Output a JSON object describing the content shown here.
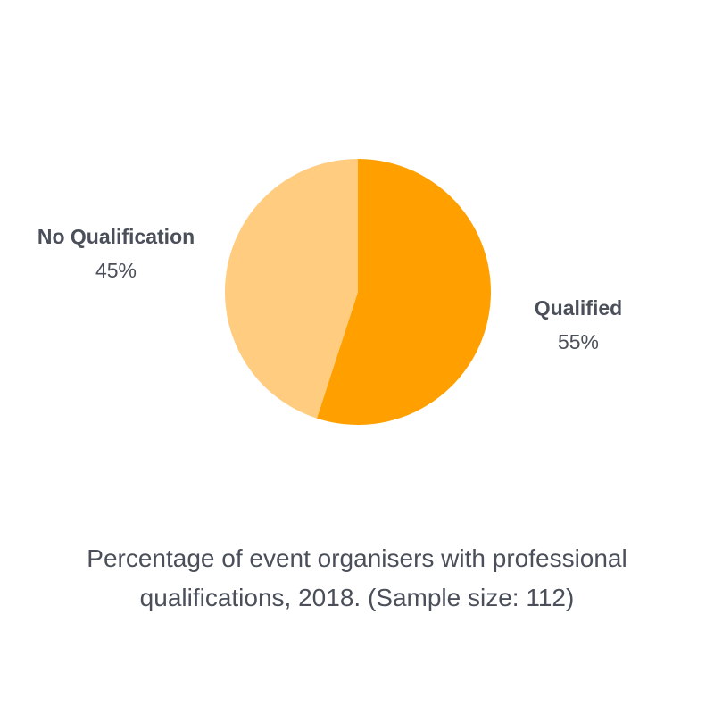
{
  "chart_data": {
    "type": "pie",
    "categories": [
      "Qualified",
      "No Qualification"
    ],
    "values": [
      55,
      45
    ],
    "value_labels": [
      "55%",
      "45%"
    ],
    "colors": [
      "#ffa000",
      "#ffcc80"
    ],
    "caption": "Percentage of event organisers with professional qualifications, 2018. (Sample size: 112)"
  }
}
